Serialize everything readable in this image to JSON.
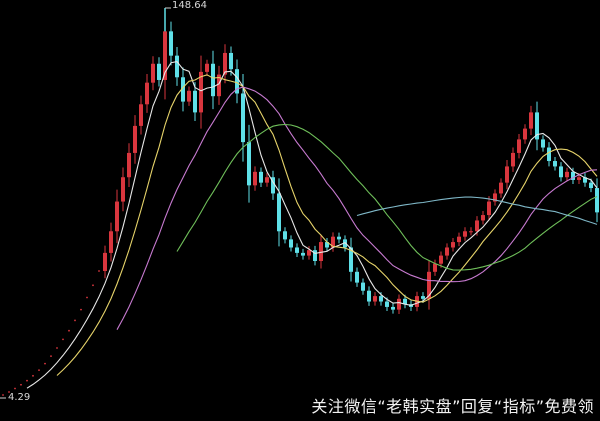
{
  "chart_data": {
    "type": "candlestick",
    "title": "",
    "price_range": [
      4.29,
      148.64
    ],
    "high_label": "148.64",
    "low_label": "4.29",
    "close": [
      5.4,
      6.5,
      7.8,
      9.2,
      10.7,
      12.5,
      14.6,
      17,
      19.8,
      22.8,
      26,
      29.2,
      33,
      37,
      41.5,
      46,
      51.3,
      58,
      66,
      77,
      86,
      95,
      105,
      113,
      121,
      128,
      122,
      140,
      131,
      123,
      114,
      118,
      110,
      125,
      128,
      116,
      124,
      132,
      126,
      117,
      99,
      83,
      88,
      84,
      86,
      80,
      66,
      63,
      60,
      58,
      57,
      59,
      55,
      62,
      60,
      64,
      63,
      60,
      51,
      47,
      44,
      40,
      42,
      40,
      38,
      37,
      41,
      39,
      38,
      42,
      41,
      51,
      54,
      57,
      60,
      62,
      64,
      66,
      66,
      70,
      72,
      77,
      80,
      84,
      90,
      95,
      100,
      104,
      110,
      100,
      97,
      92,
      90,
      86,
      88,
      85,
      86,
      84,
      82,
      73
    ],
    "moving_averages": [
      {
        "period": 5,
        "color": "#e8e8e8"
      },
      {
        "period": 10,
        "color": "#e6d36a"
      },
      {
        "period": 20,
        "color": "#c77ad0"
      },
      {
        "period": 30,
        "color": "#6fbf5a"
      },
      {
        "period": 60,
        "color": "#7fb8c8"
      }
    ],
    "colors": {
      "up": "#d9363e",
      "down": "#5fe0e8",
      "background": "#000000"
    },
    "grid": false
  },
  "watermark": "关注微信“老韩实盘”回复“指标”免费领"
}
